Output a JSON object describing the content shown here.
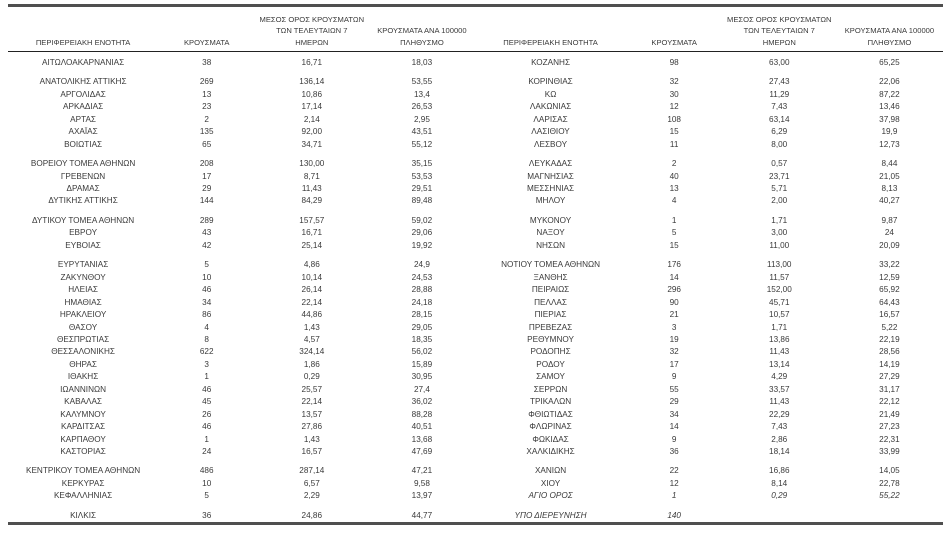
{
  "colors": {
    "text": "#3a3a3a",
    "border_heavy": "#4f4f4f",
    "border_light": "#222222",
    "background": "#ffffff"
  },
  "table": {
    "headers": {
      "region": "ΠΕΡΙΦΕΡΕΙΑΚΗ ΕΝΟΤΗΤΑ",
      "cases": "ΚΡΟΥΣΜΑΤΑ",
      "avg7": "ΜΕΣΟΣ ΟΡΟΣ ΚΡΟΥΣΜΑΤΩΝ\nΤΩΝ ΤΕΛΕΥΤΑΙΩΝ 7\nΗΜΕΡΩΝ",
      "per100k": "ΚΡΟΥΣΜΑΤΑ ΑΝΑ 100000\nΠΛΗΘΥΣΜΟ"
    },
    "left_groups": [
      [
        [
          "ΑΙΤΩΛΟΑΚΑΡΝΑΝΙΑΣ",
          "38",
          "16,71",
          "18,03"
        ]
      ],
      [
        [
          "ΑΝΑΤΟΛΙΚΗΣ ΑΤΤΙΚΗΣ",
          "269",
          "136,14",
          "53,55"
        ],
        [
          "ΑΡΓΟΛΙΔΑΣ",
          "13",
          "10,86",
          "13,4"
        ],
        [
          "ΑΡΚΑΔΙΑΣ",
          "23",
          "17,14",
          "26,53"
        ],
        [
          "ΑΡΤΑΣ",
          "2",
          "2,14",
          "2,95"
        ],
        [
          "ΑΧΑΪΑΣ",
          "135",
          "92,00",
          "43,51"
        ],
        [
          "ΒΟΙΩΤΙΑΣ",
          "65",
          "34,71",
          "55,12"
        ]
      ],
      [
        [
          "ΒΟΡΕΙΟΥ ΤΟΜΕΑ ΑΘΗΝΩΝ",
          "208",
          "130,00",
          "35,15"
        ],
        [
          "ΓΡΕΒΕΝΩΝ",
          "17",
          "8,71",
          "53,53"
        ],
        [
          "ΔΡΑΜΑΣ",
          "29",
          "11,43",
          "29,51"
        ],
        [
          "ΔΥΤΙΚΗΣ ΑΤΤΙΚΗΣ",
          "144",
          "84,29",
          "89,48"
        ]
      ],
      [
        [
          "ΔΥΤΙΚΟΥ ΤΟΜΕΑ ΑΘΗΝΩΝ",
          "289",
          "157,57",
          "59,02"
        ],
        [
          "ΕΒΡΟΥ",
          "43",
          "16,71",
          "29,06"
        ],
        [
          "ΕΥΒΟΙΑΣ",
          "42",
          "25,14",
          "19,92"
        ]
      ],
      [
        [
          "ΕΥΡΥΤΑΝΙΑΣ",
          "5",
          "4,86",
          "24,9"
        ],
        [
          "ΖΑΚΥΝΘΟΥ",
          "10",
          "10,14",
          "24,53"
        ],
        [
          "ΗΛΕΙΑΣ",
          "46",
          "26,14",
          "28,88"
        ],
        [
          "ΗΜΑΘΙΑΣ",
          "34",
          "22,14",
          "24,18"
        ],
        [
          "ΗΡΑΚΛΕΙΟΥ",
          "86",
          "44,86",
          "28,15"
        ],
        [
          "ΘΑΣΟΥ",
          "4",
          "1,43",
          "29,05"
        ],
        [
          "ΘΕΣΠΡΩΤΙΑΣ",
          "8",
          "4,57",
          "18,35"
        ],
        [
          "ΘΕΣΣΑΛΟΝΙΚΗΣ",
          "622",
          "324,14",
          "56,02"
        ],
        [
          "ΘΗΡΑΣ",
          "3",
          "1,86",
          "15,89"
        ],
        [
          "ΙΘΑΚΗΣ",
          "1",
          "0,29",
          "30,95"
        ],
        [
          "ΙΩΑΝΝΙΝΩΝ",
          "46",
          "25,57",
          "27,4"
        ],
        [
          "ΚΑΒΑΛΑΣ",
          "45",
          "22,14",
          "36,02"
        ],
        [
          "ΚΑΛΥΜΝΟΥ",
          "26",
          "13,57",
          "88,28"
        ],
        [
          "ΚΑΡΔΙΤΣΑΣ",
          "46",
          "27,86",
          "40,51"
        ],
        [
          "ΚΑΡΠΑΘΟΥ",
          "1",
          "1,43",
          "13,68"
        ],
        [
          "ΚΑΣΤΟΡΙΑΣ",
          "24",
          "16,57",
          "47,69"
        ]
      ],
      [
        [
          "ΚΕΝΤΡΙΚΟΥ ΤΟΜΕΑ ΑΘΗΝΩΝ",
          "486",
          "287,14",
          "47,21"
        ],
        [
          "ΚΕΡΚΥΡΑΣ",
          "10",
          "6,57",
          "9,58"
        ],
        [
          "ΚΕΦΑΛΛΗΝΙΑΣ",
          "5",
          "2,29",
          "13,97"
        ]
      ],
      [
        [
          "ΚΙΛΚΙΣ",
          "36",
          "24,86",
          "44,77"
        ]
      ]
    ],
    "right_groups": [
      [
        [
          "ΚΟΖΑΝΗΣ",
          "98",
          "63,00",
          "65,25"
        ]
      ],
      [
        [
          "ΚΟΡΙΝΘΙΑΣ",
          "32",
          "27,43",
          "22,06"
        ],
        [
          "ΚΩ",
          "30",
          "11,29",
          "87,22"
        ],
        [
          "ΛΑΚΩΝΙΑΣ",
          "12",
          "7,43",
          "13,46"
        ],
        [
          "ΛΑΡΙΣΑΣ",
          "108",
          "63,14",
          "37,98"
        ],
        [
          "ΛΑΣΙΘΙΟΥ",
          "15",
          "6,29",
          "19,9"
        ],
        [
          "ΛΕΣΒΟΥ",
          "11",
          "8,00",
          "12,73"
        ]
      ],
      [
        [
          "ΛΕΥΚΑΔΑΣ",
          "2",
          "0,57",
          "8,44"
        ],
        [
          "ΜΑΓΝΗΣΙΑΣ",
          "40",
          "23,71",
          "21,05"
        ],
        [
          "ΜΕΣΣΗΝΙΑΣ",
          "13",
          "5,71",
          "8,13"
        ],
        [
          "ΜΗΛΟΥ",
          "4",
          "2,00",
          "40,27"
        ]
      ],
      [
        [
          "ΜΥΚΟΝΟΥ",
          "1",
          "1,71",
          "9,87"
        ],
        [
          "ΝΑΞΟΥ",
          "5",
          "3,00",
          "24"
        ],
        [
          "ΝΗΣΩΝ",
          "15",
          "11,00",
          "20,09"
        ]
      ],
      [
        [
          "ΝΟΤΙΟΥ ΤΟΜΕΑ ΑΘΗΝΩΝ",
          "176",
          "113,00",
          "33,22"
        ],
        [
          "ΞΑΝΘΗΣ",
          "14",
          "11,57",
          "12,59"
        ],
        [
          "ΠΕΙΡΑΙΩΣ",
          "296",
          "152,00",
          "65,92"
        ],
        [
          "ΠΕΛΛΑΣ",
          "90",
          "45,71",
          "64,43"
        ],
        [
          "ΠΙΕΡΙΑΣ",
          "21",
          "10,57",
          "16,57"
        ],
        [
          "ΠΡΕΒΕΖΑΣ",
          "3",
          "1,71",
          "5,22"
        ],
        [
          "ΡΕΘΥΜΝΟΥ",
          "19",
          "13,86",
          "22,19"
        ],
        [
          "ΡΟΔΟΠΗΣ",
          "32",
          "11,43",
          "28,56"
        ],
        [
          "ΡΟΔΟΥ",
          "17",
          "13,14",
          "14,19"
        ],
        [
          "ΣΑΜΟΥ",
          "9",
          "4,29",
          "27,29"
        ],
        [
          "ΣΕΡΡΩΝ",
          "55",
          "33,57",
          "31,17"
        ],
        [
          "ΤΡΙΚΑΛΩΝ",
          "29",
          "11,43",
          "22,12"
        ],
        [
          "ΦΘΙΩΤΙΔΑΣ",
          "34",
          "22,29",
          "21,49"
        ],
        [
          "ΦΛΩΡΙΝΑΣ",
          "14",
          "7,43",
          "27,23"
        ],
        [
          "ΦΩΚΙΔΑΣ",
          "9",
          "2,86",
          "22,31"
        ],
        [
          "ΧΑΛΚΙΔΙΚΗΣ",
          "36",
          "18,14",
          "33,99"
        ]
      ],
      [
        [
          "ΧΑΝΙΩΝ",
          "22",
          "16,86",
          "14,05"
        ],
        [
          "ΧΙΟΥ",
          "12",
          "8,14",
          "22,78"
        ],
        [
          "ΑΓΙΟ ΟΡΟΣ",
          "1",
          "0,29",
          "55,22",
          "italic"
        ]
      ],
      [
        [
          "ΥΠΟ ΔΙΕΡΕΥΝΗΣΗ",
          "140",
          "",
          "",
          "italic"
        ]
      ]
    ]
  }
}
